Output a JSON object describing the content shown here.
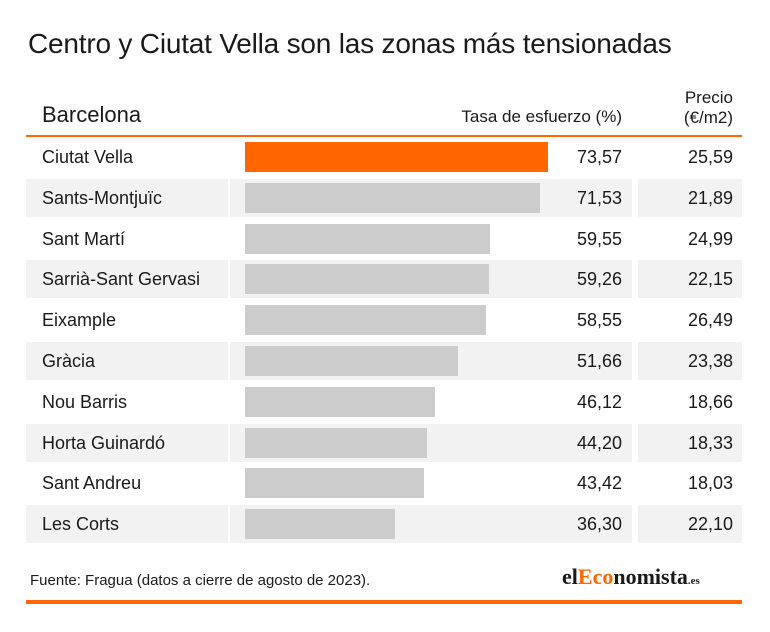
{
  "title": "Centro y Ciutat Vella son las zonas más tensionadas",
  "header": {
    "region": "Barcelona",
    "rate": "Tasa de esfuerzo (%)",
    "price_line1": "Precio",
    "price_line2": "(€/m2)"
  },
  "colors": {
    "accent": "#ff6600",
    "bar": "#cccccc",
    "row_shade": "#f2f2f2"
  },
  "chart_data": {
    "type": "bar",
    "orientation": "horizontal",
    "categories": [
      "Ciutat Vella",
      "Sants-Montjuïc",
      "Sant Martí",
      "Sarrià-Sant Gervasi",
      "Eixample",
      "Gràcia",
      "Nou Barris",
      "Horta Guinardó",
      "Sant Andreu",
      "Les Corts"
    ],
    "series": [
      {
        "name": "Tasa de esfuerzo (%)",
        "values": [
          73.57,
          71.53,
          59.55,
          59.26,
          58.55,
          51.66,
          46.12,
          44.2,
          43.42,
          36.3
        ]
      },
      {
        "name": "Precio (€/m2)",
        "values": [
          25.59,
          21.89,
          24.99,
          22.15,
          26.49,
          23.38,
          18.66,
          18.33,
          18.03,
          22.1
        ]
      }
    ],
    "rate_labels": [
      "73,57",
      "71,53",
      "59,55",
      "59,26",
      "58,55",
      "51,66",
      "46,12",
      "44,20",
      "43,42",
      "36,30"
    ],
    "price_labels": [
      "25,59",
      "21,89",
      "24,99",
      "22,15",
      "26,49",
      "23,38",
      "18,66",
      "18,33",
      "18,03",
      "22,10"
    ],
    "highlight_index": 0,
    "xlim": [
      0,
      73.57
    ]
  },
  "footer": {
    "source": "Fuente: Fragua (datos a cierre de agosto de 2023).",
    "logo_prefix": "el",
    "logo_accent": "Eco",
    "logo_rest": "nomista",
    "logo_suffix": ".es"
  }
}
